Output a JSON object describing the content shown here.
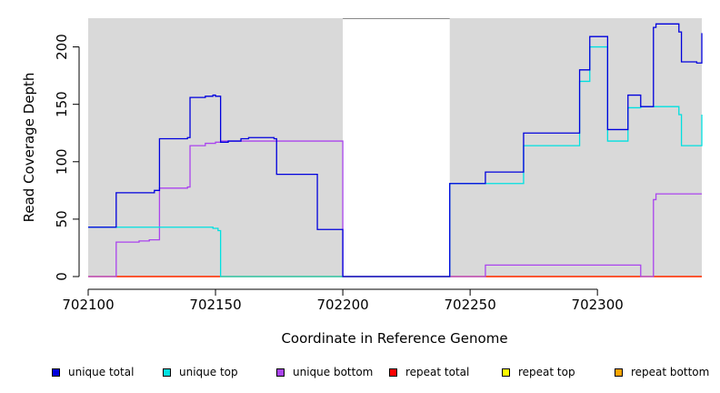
{
  "chart_data": {
    "type": "line",
    "title": "",
    "xlabel": "Coordinate in Reference Genome",
    "ylabel": "Read Coverage Depth",
    "xlim": [
      702100,
      702341
    ],
    "ylim": [
      0,
      225
    ],
    "xticks": [
      702100,
      702150,
      702200,
      702250,
      702300
    ],
    "yticks": [
      0,
      50,
      100,
      150,
      200
    ],
    "xtick_labels": [
      "702100",
      "702150",
      "702200",
      "702250",
      "702300"
    ],
    "ytick_labels": [
      "0",
      "50",
      "100",
      "150",
      "200"
    ],
    "background": "#d9d9d9",
    "unshaded_region": [
      702200,
      702242
    ],
    "legend_position": "bottom",
    "step": true,
    "series": [
      {
        "name": "unique total",
        "color": "#0000dd",
        "x": [
          702100,
          702111,
          702126,
          702128,
          702139,
          702140,
          702146,
          702149,
          702150,
          702152,
          702155,
          702160,
          702163,
          702165,
          702173,
          702174,
          702190,
          702200,
          702242,
          702256,
          702271,
          702293,
          702297,
          702304,
          702312,
          702317,
          702322,
          702323,
          702332,
          702333,
          702339,
          702341
        ],
        "y": [
          43,
          73,
          75,
          120,
          121,
          156,
          157,
          158,
          157,
          117,
          118,
          120,
          121,
          121,
          120,
          89,
          41,
          0,
          81,
          91,
          125,
          180,
          209,
          128,
          158,
          148,
          217,
          220,
          213,
          187,
          186,
          212
        ]
      },
      {
        "name": "unique top",
        "color": "#00e0e0",
        "x": [
          702100,
          702131,
          702138,
          702149,
          702151,
          702152,
          702200,
          702242,
          702271,
          702293,
          702297,
          702304,
          702312,
          702317,
          702321,
          702332,
          702333,
          702339,
          702341
        ],
        "y": [
          43,
          43,
          43,
          42,
          40,
          0,
          0,
          81,
          114,
          170,
          200,
          118,
          147,
          148,
          148,
          141,
          114,
          114,
          141
        ]
      },
      {
        "name": "unique bottom",
        "color": "#aa44ee",
        "x": [
          702100,
          702111,
          702120,
          702124,
          702128,
          702139,
          702140,
          702146,
          702150,
          702152,
          702200,
          702242,
          702256,
          702317,
          702322,
          702323,
          702341
        ],
        "y": [
          0,
          30,
          31,
          32,
          77,
          78,
          114,
          116,
          117,
          118,
          0,
          0,
          10,
          0,
          67,
          72,
          72
        ]
      },
      {
        "name": "repeat total",
        "color": "#ff0000",
        "x": [
          702100,
          702341
        ],
        "y": [
          0,
          0
        ]
      },
      {
        "name": "repeat top",
        "color": "#ffff00",
        "x": [
          702100,
          702341
        ],
        "y": [
          0,
          0
        ]
      },
      {
        "name": "repeat bottom",
        "color": "#ffa500",
        "x": [
          702100,
          702200,
          702242,
          702341
        ],
        "y": [
          0,
          0,
          0,
          0
        ]
      }
    ]
  }
}
